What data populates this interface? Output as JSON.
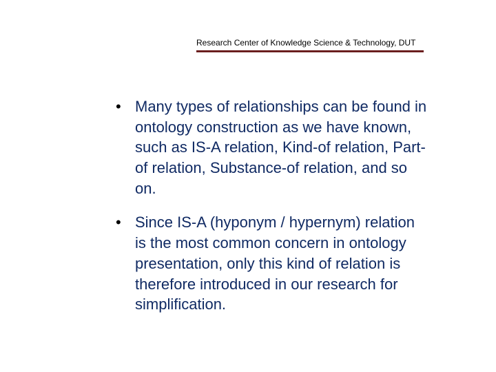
{
  "header": {
    "text": "Research Center of Knowledge Science & Technology, DUT",
    "rule_color": "#6b1e1e"
  },
  "body": {
    "text_color": "#102a63",
    "bullets": [
      "Many types of relationships can be found in ontology construction as we have known, such as IS-A relation, Kind-of relation, Part-of relation, Substance-of relation, and so on.",
      "Since IS-A (hyponym / hypernym) relation is the most common concern in ontology presentation, only this kind of relation is therefore introduced in our research for simplification."
    ]
  }
}
